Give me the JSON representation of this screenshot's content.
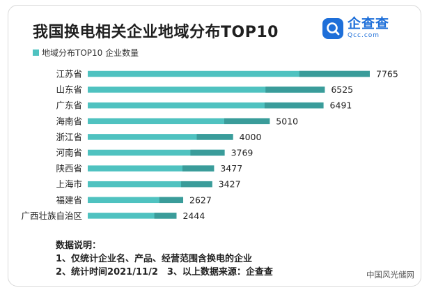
{
  "header": {
    "title": "我国换电相关企业地域分布TOP10",
    "legend_label": "地域分布TOP10 企业数量",
    "logo_cn": "企查查",
    "logo_en": "Qcc.com"
  },
  "colors": {
    "bar": "#4fc2c0",
    "bar_shade": "#3a9c9a",
    "logo_blue": "#1e6fd9"
  },
  "chart_data": {
    "type": "bar",
    "orientation": "horizontal",
    "title": "我国换电相关企业地域分布TOP10",
    "categories": [
      "江苏省",
      "山东省",
      "广东省",
      "海南省",
      "浙江省",
      "河南省",
      "陕西省",
      "上海市",
      "福建省",
      "广西壮族自治区"
    ],
    "series": [
      {
        "name": "地域分布TOP10 企业数量",
        "values": [
          7765,
          6525,
          6491,
          5010,
          4000,
          3769,
          3477,
          3427,
          2627,
          2444
        ]
      }
    ],
    "xlim": [
      0,
      7765
    ],
    "grid": false,
    "legend": "top-left",
    "data_labels": true
  },
  "notes": {
    "heading": "数据说明：",
    "line1": "1、仅统计企业名、产品、经营范围含换电的企业",
    "line2": "2、统计时间2021/11/2　3、以上数据来源：企查查"
  },
  "watermark": "中国风光储网"
}
